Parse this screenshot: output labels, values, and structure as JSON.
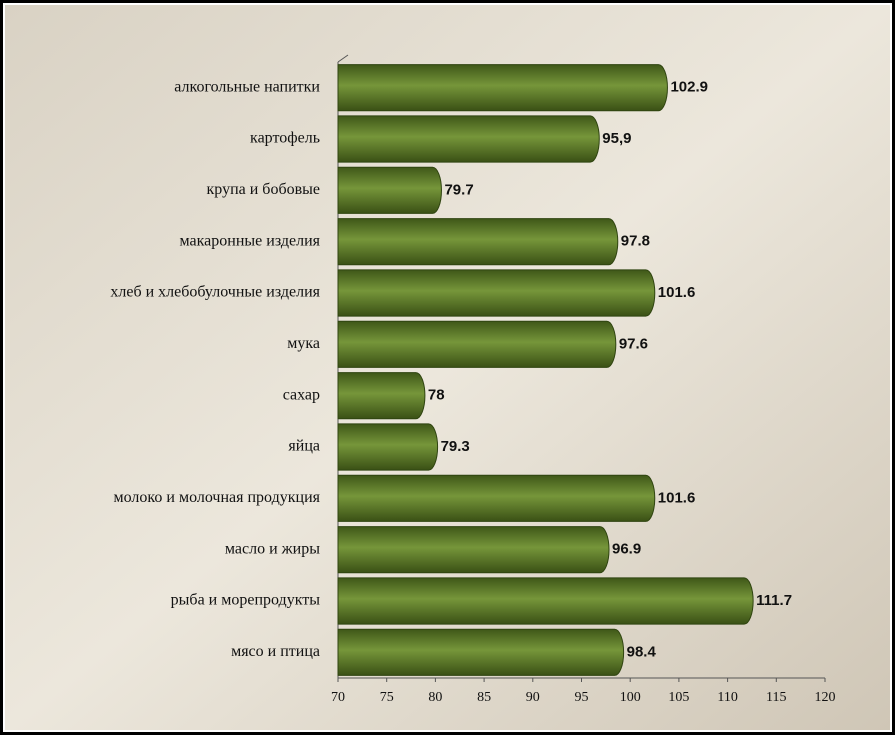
{
  "chart_data": {
    "type": "bar",
    "orientation": "horizontal",
    "categories": [
      "алкогольные напитки",
      "картофель",
      "крупа и бобовые",
      "макаронные изделия",
      "хлеб и хлебобулочные изделия",
      "мука",
      "сахар",
      "яйца",
      "молоко и молочная продукция",
      "масло и жиры",
      "рыба и морепродукты",
      "мясо и птица"
    ],
    "values": [
      102.9,
      95.9,
      79.7,
      97.8,
      101.6,
      97.6,
      78,
      79.3,
      101.6,
      96.9,
      111.7,
      98.4
    ],
    "value_labels": [
      "102.9",
      "95,9",
      "79.7",
      "97.8",
      "101.6",
      "97.6",
      "78",
      "79.3",
      "101.6",
      "96.9",
      "111.7",
      "98.4"
    ],
    "color": "#76963a",
    "xlim": [
      70,
      120
    ],
    "xticks": [
      70,
      75,
      80,
      85,
      90,
      95,
      100,
      105,
      110,
      115,
      120
    ]
  }
}
